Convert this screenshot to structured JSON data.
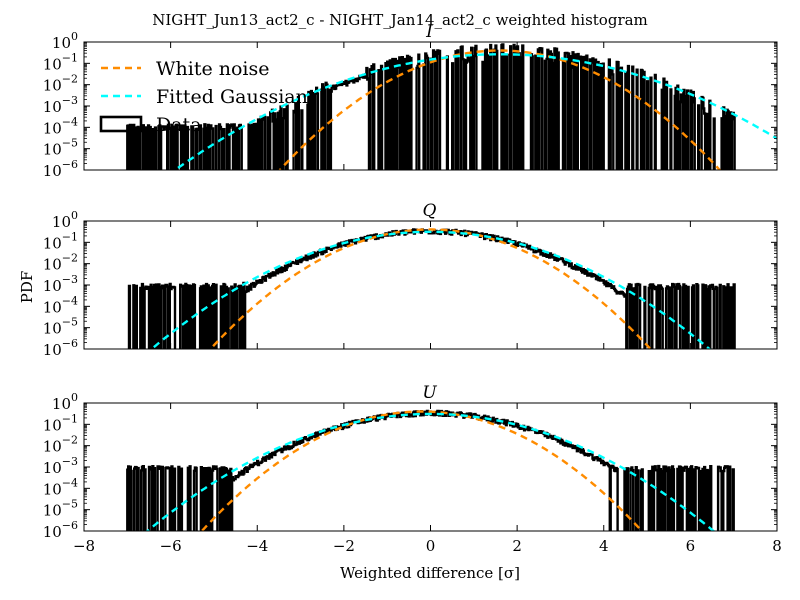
{
  "figure": {
    "suptitle": "NIGHT_Jun13_act2_c - NIGHT_Jan14_act2_c weighted histogram",
    "xlabel": "Weighted difference [σ]",
    "ylabel": "PDF",
    "legend": {
      "placement": "upper-left of top panel",
      "entries": [
        {
          "label": "White noise",
          "style": "dashed",
          "color": "#ff8c00"
        },
        {
          "label": "Fitted Gaussian",
          "style": "dashed",
          "color": "#00ffff"
        },
        {
          "label": "Data",
          "style": "box",
          "color": "#000000"
        }
      ]
    },
    "colors": {
      "data": "#000000",
      "white_noise": "#ff8c00",
      "fitted": "#00ffff"
    }
  },
  "chart_data": [
    {
      "type": "line",
      "title": "I",
      "xlim": [
        -8,
        8
      ],
      "ylim": [
        1e-06,
        1
      ],
      "yscale": "log",
      "xticks": [
        "−8",
        "−6",
        "−4",
        "−2",
        "0",
        "2",
        "4",
        "6",
        "8"
      ],
      "yticks": [
        {
          "base": "10",
          "exp": "0"
        },
        {
          "base": "10",
          "exp": "-1"
        },
        {
          "base": "10",
          "exp": "-2"
        },
        {
          "base": "10",
          "exp": "-3"
        },
        {
          "base": "10",
          "exp": "-4"
        },
        {
          "base": "10",
          "exp": "-5"
        },
        {
          "base": "10",
          "exp": "-6"
        }
      ],
      "white_noise": {
        "mu": 1.6,
        "sigma": 1.0
      },
      "fitted": {
        "mu": 1.6,
        "sigma": 1.5
      },
      "data": {
        "start": -7.0,
        "end": 7.0,
        "mu": 1.6,
        "sigma": 1.4,
        "noisy_until": -2.3,
        "clean_from": -1.5,
        "floor_exp": -4.0,
        "peak": 0.3
      },
      "legend": true
    },
    {
      "type": "line",
      "title": "Q",
      "xlim": [
        -8,
        8
      ],
      "ylim": [
        1e-06,
        1
      ],
      "yscale": "log",
      "xticks": [
        "−8",
        "−6",
        "−4",
        "−2",
        "0",
        "2",
        "4",
        "6",
        "8"
      ],
      "yticks": [
        {
          "base": "10",
          "exp": "0"
        },
        {
          "base": "10",
          "exp": "-1"
        },
        {
          "base": "10",
          "exp": "-2"
        },
        {
          "base": "10",
          "exp": "-3"
        },
        {
          "base": "10",
          "exp": "-4"
        },
        {
          "base": "10",
          "exp": "-5"
        },
        {
          "base": "10",
          "exp": "-6"
        }
      ],
      "white_noise": {
        "mu": 0.0,
        "sigma": 1.0
      },
      "fitted": {
        "mu": 0.0,
        "sigma": 1.28
      },
      "data": {
        "start": -7.0,
        "end": 7.0,
        "mu": 0.0,
        "sigma": 1.2,
        "noisy_until": -4.3,
        "clean_from": 4.5,
        "floor_exp": -3.1,
        "peak": 0.33
      },
      "legend": false
    },
    {
      "type": "line",
      "title": "U",
      "xlim": [
        -8,
        8
      ],
      "ylim": [
        1e-06,
        1
      ],
      "yscale": "log",
      "xticks": [
        "−8",
        "−6",
        "−4",
        "−2",
        "0",
        "2",
        "4",
        "6",
        "8"
      ],
      "yticks": [
        {
          "base": "10",
          "exp": "0"
        },
        {
          "base": "10",
          "exp": "-1"
        },
        {
          "base": "10",
          "exp": "-2"
        },
        {
          "base": "10",
          "exp": "-3"
        },
        {
          "base": "10",
          "exp": "-4"
        },
        {
          "base": "10",
          "exp": "-5"
        },
        {
          "base": "10",
          "exp": "-6"
        }
      ],
      "white_noise": {
        "mu": -0.2,
        "sigma": 1.0
      },
      "fitted": {
        "mu": 0.0,
        "sigma": 1.3
      },
      "data": {
        "start": -7.0,
        "end": 7.0,
        "mu": 0.0,
        "sigma": 1.22,
        "noisy_until": -4.6,
        "clean_from": 4.3,
        "floor_exp": -3.1,
        "peak": 0.33
      },
      "legend": false
    }
  ]
}
